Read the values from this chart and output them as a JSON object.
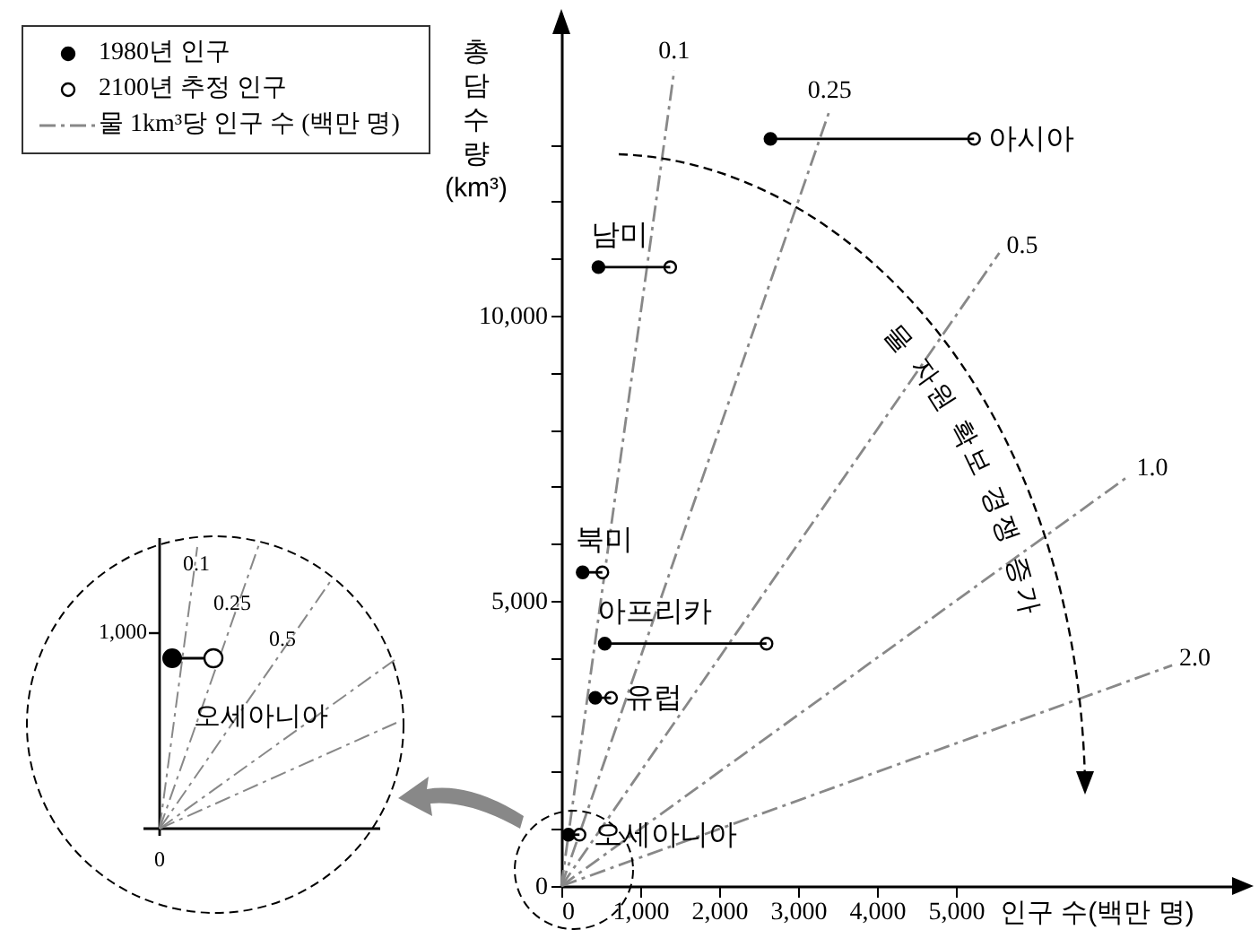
{
  "chart_data": [
    {
      "type": "scatter",
      "xlabel": "인구 수(백만 명)",
      "ylabel": "총 담수량(km³)",
      "xlim": [
        0,
        8500
      ],
      "ylim": [
        0,
        15000
      ],
      "xticks": [
        0,
        {
          "value": 1000,
          "label": "1,000"
        },
        {
          "value": 2000,
          "label": "2,000"
        },
        {
          "value": 3000,
          "label": "3,000"
        },
        {
          "value": 4000,
          "label": "4,000"
        },
        {
          "value": 5000,
          "label": "5,000"
        }
      ],
      "yticks": [
        0,
        {
          "value": 1000,
          "label": null
        },
        {
          "value": 2000,
          "label": null
        },
        {
          "value": 3000,
          "label": null
        },
        {
          "value": 4000,
          "label": null
        },
        {
          "value": 5000,
          "label": "5,000"
        },
        {
          "value": 6000,
          "label": null
        },
        {
          "value": 7000,
          "label": null
        },
        {
          "value": 8000,
          "label": null
        },
        {
          "value": 9000,
          "label": null
        },
        {
          "value": 10000,
          "label": "10,000"
        },
        {
          "value": 11000,
          "label": null
        },
        {
          "value": 12000,
          "label": null
        },
        {
          "value": 13000,
          "label": null
        }
      ],
      "legend": "top left",
      "grid": false,
      "series": [
        {
          "name": "1980년 인구",
          "type": "scatter",
          "marker": "circle",
          "color": "#000000",
          "x": [
            2650,
            470,
            270,
            550,
            430,
            90
          ],
          "values": [
            13100,
            10850,
            5500,
            4250,
            3300,
            900
          ]
        },
        {
          "name": "2100년 추정 인구",
          "type": "scatter",
          "marker": "circle",
          "color": "#ffffff",
          "x": [
            5230,
            1380,
            520,
            2600,
            630,
            230
          ],
          "values": [
            13100,
            10850,
            5500,
            4250,
            3300,
            900
          ]
        },
        {
          "name": "물 1km³당 인구 수 (백만 명)",
          "type": "line",
          "color": "#888888",
          "line_style": "dashed",
          "x": [
            0,
            1430
          ],
          "values": [
            0,
            14300
          ]
        },
        {
          "type": "line",
          "color": "#888888",
          "line_style": "dashed",
          "x": [
            0,
            3400
          ],
          "values": [
            0,
            13600
          ]
        },
        {
          "type": "line",
          "color": "#888888",
          "line_style": "dashed",
          "x": [
            0,
            5550
          ],
          "values": [
            0,
            11100
          ]
        },
        {
          "type": "line",
          "color": "#888888",
          "line_style": "dashed",
          "x": [
            0,
            7200
          ],
          "values": [
            0,
            7200
          ]
        },
        {
          "type": "line",
          "color": "#888888",
          "line_style": "dashed",
          "x": [
            0,
            7740
          ],
          "values": [
            0,
            3870
          ]
        },
        {
          "type": "line",
          "color": "#000000",
          "x": [
            2650,
            5230
          ],
          "values": [
            13100,
            13100
          ]
        },
        {
          "type": "line",
          "color": "#000000",
          "x": [
            470,
            1380
          ],
          "values": [
            10850,
            10850
          ]
        },
        {
          "type": "line",
          "color": "#000000",
          "x": [
            270,
            520
          ],
          "values": [
            5500,
            5500
          ]
        },
        {
          "type": "line",
          "color": "#000000",
          "x": [
            550,
            2600
          ],
          "values": [
            4250,
            4250
          ]
        },
        {
          "type": "line",
          "color": "#000000",
          "x": [
            430,
            630
          ],
          "values": [
            3300,
            3300
          ]
        },
        {
          "type": "line",
          "color": "#000000",
          "x": [
            90,
            230
          ],
          "values": [
            900,
            900
          ]
        }
      ],
      "annotations": [
        {
          "text": "0.1",
          "x": 1430,
          "y": 14300
        },
        {
          "text": "0.25",
          "x": 3400,
          "y": 13600
        },
        {
          "text": "0.5",
          "x": 5550,
          "y": 11100
        },
        {
          "text": "1.0",
          "x": 7200,
          "y": 7200
        },
        {
          "text": "2.0",
          "x": 7740,
          "y": 3870
        },
        {
          "text": "아시아",
          "x": 5230,
          "y": 13100
        },
        {
          "text": "남미",
          "x": 470,
          "y": 10850
        },
        {
          "text": "북미",
          "x": 270,
          "y": 5500
        },
        {
          "text": "아프리카",
          "x": 550,
          "y": 4250
        },
        {
          "text": "유럽",
          "x": 630,
          "y": 3300
        },
        {
          "text": "오세아니아",
          "x": 230,
          "y": 900
        },
        "물 자원 확보 경쟁 증가"
      ]
    },
    {
      "type": "other",
      "annotations": [
        "0.1",
        "0.25",
        "0.5",
        "오세아니아",
        "1,000",
        "0"
      ]
    }
  ]
}
